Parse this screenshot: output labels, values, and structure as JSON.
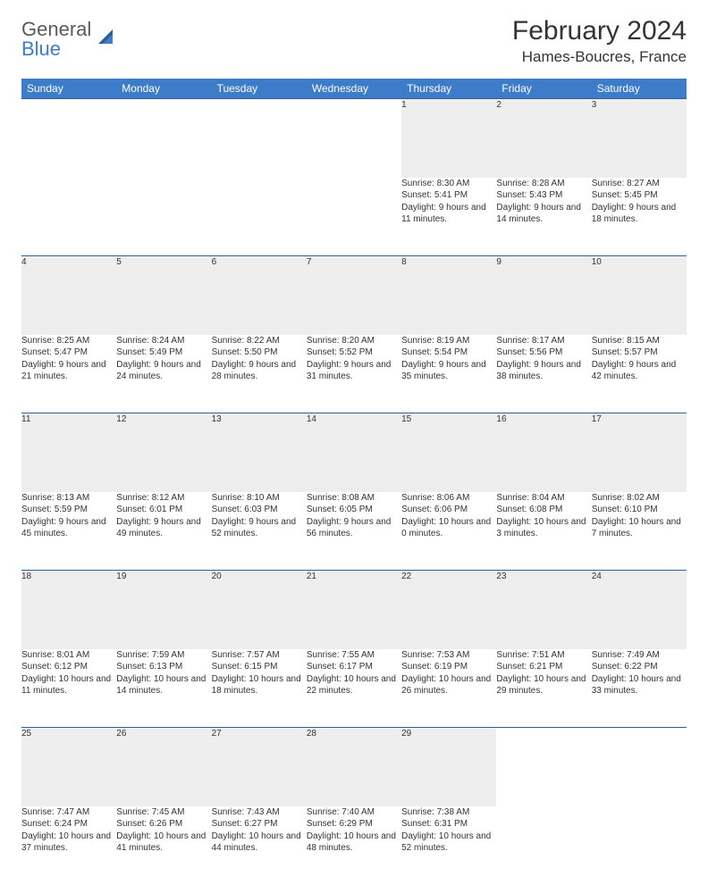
{
  "brand": {
    "name_a": "General",
    "name_b": "Blue"
  },
  "title": "February 2024",
  "location": "Hames-Boucres, France",
  "colors": {
    "header_bg": "#3d7cc9",
    "header_text": "#ffffff",
    "daynum_bg": "#eeeeee",
    "row_border": "#2f5e96",
    "text": "#333333",
    "logo_gray": "#5a5a5a",
    "logo_blue": "#3d7cc9",
    "page_bg": "#ffffff"
  },
  "fonts": {
    "body_family": "Arial",
    "title_size_pt": 30,
    "location_size_pt": 17,
    "weekday_size_pt": 12,
    "daynum_size_pt": 11,
    "cell_size_pt": 10
  },
  "weekdays": [
    "Sunday",
    "Monday",
    "Tuesday",
    "Wednesday",
    "Thursday",
    "Friday",
    "Saturday"
  ],
  "weeks": [
    [
      null,
      null,
      null,
      null,
      {
        "n": "1",
        "sr": "8:30 AM",
        "ss": "5:41 PM",
        "dh": "9",
        "dm": "11"
      },
      {
        "n": "2",
        "sr": "8:28 AM",
        "ss": "5:43 PM",
        "dh": "9",
        "dm": "14"
      },
      {
        "n": "3",
        "sr": "8:27 AM",
        "ss": "5:45 PM",
        "dh": "9",
        "dm": "18"
      }
    ],
    [
      {
        "n": "4",
        "sr": "8:25 AM",
        "ss": "5:47 PM",
        "dh": "9",
        "dm": "21"
      },
      {
        "n": "5",
        "sr": "8:24 AM",
        "ss": "5:49 PM",
        "dh": "9",
        "dm": "24"
      },
      {
        "n": "6",
        "sr": "8:22 AM",
        "ss": "5:50 PM",
        "dh": "9",
        "dm": "28"
      },
      {
        "n": "7",
        "sr": "8:20 AM",
        "ss": "5:52 PM",
        "dh": "9",
        "dm": "31"
      },
      {
        "n": "8",
        "sr": "8:19 AM",
        "ss": "5:54 PM",
        "dh": "9",
        "dm": "35"
      },
      {
        "n": "9",
        "sr": "8:17 AM",
        "ss": "5:56 PM",
        "dh": "9",
        "dm": "38"
      },
      {
        "n": "10",
        "sr": "8:15 AM",
        "ss": "5:57 PM",
        "dh": "9",
        "dm": "42"
      }
    ],
    [
      {
        "n": "11",
        "sr": "8:13 AM",
        "ss": "5:59 PM",
        "dh": "9",
        "dm": "45"
      },
      {
        "n": "12",
        "sr": "8:12 AM",
        "ss": "6:01 PM",
        "dh": "9",
        "dm": "49"
      },
      {
        "n": "13",
        "sr": "8:10 AM",
        "ss": "6:03 PM",
        "dh": "9",
        "dm": "52"
      },
      {
        "n": "14",
        "sr": "8:08 AM",
        "ss": "6:05 PM",
        "dh": "9",
        "dm": "56"
      },
      {
        "n": "15",
        "sr": "8:06 AM",
        "ss": "6:06 PM",
        "dh": "10",
        "dm": "0"
      },
      {
        "n": "16",
        "sr": "8:04 AM",
        "ss": "6:08 PM",
        "dh": "10",
        "dm": "3"
      },
      {
        "n": "17",
        "sr": "8:02 AM",
        "ss": "6:10 PM",
        "dh": "10",
        "dm": "7"
      }
    ],
    [
      {
        "n": "18",
        "sr": "8:01 AM",
        "ss": "6:12 PM",
        "dh": "10",
        "dm": "11"
      },
      {
        "n": "19",
        "sr": "7:59 AM",
        "ss": "6:13 PM",
        "dh": "10",
        "dm": "14"
      },
      {
        "n": "20",
        "sr": "7:57 AM",
        "ss": "6:15 PM",
        "dh": "10",
        "dm": "18"
      },
      {
        "n": "21",
        "sr": "7:55 AM",
        "ss": "6:17 PM",
        "dh": "10",
        "dm": "22"
      },
      {
        "n": "22",
        "sr": "7:53 AM",
        "ss": "6:19 PM",
        "dh": "10",
        "dm": "26"
      },
      {
        "n": "23",
        "sr": "7:51 AM",
        "ss": "6:21 PM",
        "dh": "10",
        "dm": "29"
      },
      {
        "n": "24",
        "sr": "7:49 AM",
        "ss": "6:22 PM",
        "dh": "10",
        "dm": "33"
      }
    ],
    [
      {
        "n": "25",
        "sr": "7:47 AM",
        "ss": "6:24 PM",
        "dh": "10",
        "dm": "37"
      },
      {
        "n": "26",
        "sr": "7:45 AM",
        "ss": "6:26 PM",
        "dh": "10",
        "dm": "41"
      },
      {
        "n": "27",
        "sr": "7:43 AM",
        "ss": "6:27 PM",
        "dh": "10",
        "dm": "44"
      },
      {
        "n": "28",
        "sr": "7:40 AM",
        "ss": "6:29 PM",
        "dh": "10",
        "dm": "48"
      },
      {
        "n": "29",
        "sr": "7:38 AM",
        "ss": "6:31 PM",
        "dh": "10",
        "dm": "52"
      },
      null,
      null
    ]
  ],
  "labels": {
    "sunrise": "Sunrise:",
    "sunset": "Sunset:",
    "daylight": "Daylight:",
    "hours_word": "hours",
    "and_word": "and",
    "minutes_word": "minutes."
  }
}
